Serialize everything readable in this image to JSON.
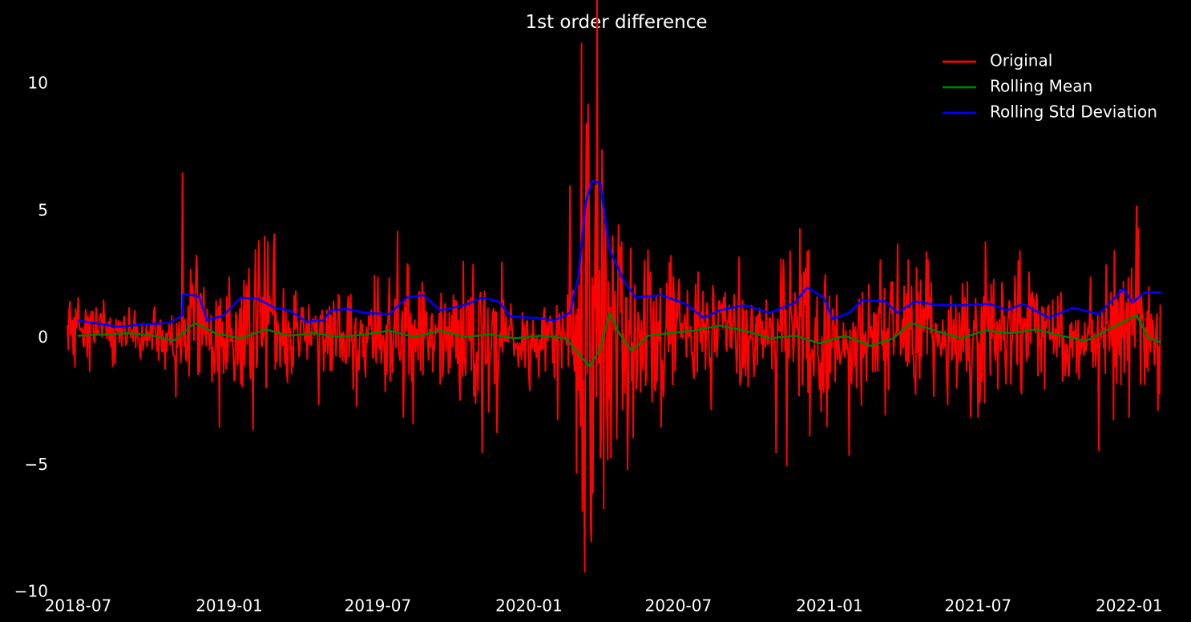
{
  "chart_data": {
    "type": "line",
    "title": "1st order difference",
    "xlabel": "",
    "ylabel": "",
    "grid": false,
    "legend_position": "top-right",
    "background": "#000000",
    "x_ticks": [
      "2018-07",
      "2019-01",
      "2019-07",
      "2020-01",
      "2020-07",
      "2021-01",
      "2021-07",
      "2022-01"
    ],
    "y_ticks": [
      -10,
      -5,
      0,
      5,
      10
    ],
    "y_tick_labels": [
      "−10",
      "−5",
      "0",
      "5",
      "10"
    ],
    "ylim": [
      -10,
      11.8
    ],
    "xlim": [
      "2018-06-10",
      "2022-02-20"
    ],
    "x_range": [
      "2018-06-18",
      "2022-02-08"
    ],
    "series": [
      {
        "name": "Original",
        "color": "#ff0000",
        "points": [
          [
            "2018-06-18",
            0.5
          ],
          [
            "2018-07-01",
            1.6
          ],
          [
            "2018-07-15",
            -1.3
          ],
          [
            "2018-08-01",
            1.5
          ],
          [
            "2018-08-15",
            -1.0
          ],
          [
            "2018-09-01",
            1.2
          ],
          [
            "2018-09-15",
            -0.8
          ],
          [
            "2018-10-01",
            1.0
          ],
          [
            "2018-10-15",
            -1.2
          ],
          [
            "2018-10-28",
            -2.3
          ],
          [
            "2018-11-05",
            6.5
          ],
          [
            "2018-11-10",
            -0.9
          ],
          [
            "2018-12-01",
            2.0
          ],
          [
            "2018-12-20",
            -3.5
          ],
          [
            "2019-01-01",
            2.4
          ],
          [
            "2019-01-15",
            -1.8
          ],
          [
            "2019-02-01",
            1.6
          ],
          [
            "2019-02-25",
            4.1
          ],
          [
            "2019-03-10",
            -1.0
          ],
          [
            "2019-04-01",
            1.2
          ],
          [
            "2019-04-20",
            -2.6
          ],
          [
            "2019-05-15",
            1.6
          ],
          [
            "2019-06-01",
            -2.0
          ],
          [
            "2019-07-01",
            2.4
          ],
          [
            "2019-07-25",
            4.2
          ],
          [
            "2019-08-01",
            -3.1
          ],
          [
            "2019-08-20",
            1.8
          ],
          [
            "2019-09-15",
            -1.8
          ],
          [
            "2019-10-01",
            1.7
          ],
          [
            "2019-10-25",
            2.9
          ],
          [
            "2019-11-05",
            -4.5
          ],
          [
            "2019-12-01",
            1.5
          ],
          [
            "2020-01-01",
            -1.5
          ],
          [
            "2020-01-20",
            1.2
          ],
          [
            "2020-02-05",
            -3.2
          ],
          [
            "2020-02-20",
            6.0
          ],
          [
            "2020-02-28",
            -5.3
          ],
          [
            "2020-03-05",
            11.6
          ],
          [
            "2020-03-09",
            -9.2
          ],
          [
            "2020-03-13",
            9.2
          ],
          [
            "2020-03-17",
            -8.0
          ],
          [
            "2020-03-22",
            6.0
          ],
          [
            "2020-03-28",
            -4.7
          ],
          [
            "2020-04-03",
            4.6
          ],
          [
            "2020-04-10",
            -4.7
          ],
          [
            "2020-04-20",
            3.0
          ],
          [
            "2020-05-01",
            -2.8
          ],
          [
            "2020-05-20",
            1.8
          ],
          [
            "2020-06-10",
            -3.5
          ],
          [
            "2020-07-01",
            1.8
          ],
          [
            "2020-07-25",
            2.6
          ],
          [
            "2020-08-10",
            -2.8
          ],
          [
            "2020-09-01",
            1.3
          ],
          [
            "2020-10-01",
            -1.5
          ],
          [
            "2020-10-28",
            -4.5
          ],
          [
            "2020-11-05",
            1.5
          ],
          [
            "2020-11-10",
            -5.0
          ],
          [
            "2020-12-01",
            2.6
          ],
          [
            "2020-12-20",
            -2.0
          ],
          [
            "2021-01-10",
            1.7
          ],
          [
            "2021-01-25",
            -4.6
          ],
          [
            "2021-02-10",
            1.8
          ],
          [
            "2021-03-10",
            -3.0
          ],
          [
            "2021-03-25",
            3.7
          ],
          [
            "2021-04-15",
            -1.6
          ],
          [
            "2021-05-05",
            2.2
          ],
          [
            "2021-05-25",
            -2.6
          ],
          [
            "2021-06-15",
            1.6
          ],
          [
            "2021-07-01",
            -3.1
          ],
          [
            "2021-07-20",
            2.3
          ],
          [
            "2021-08-10",
            -1.8
          ],
          [
            "2021-09-01",
            2.6
          ],
          [
            "2021-09-20",
            -2.0
          ],
          [
            "2021-10-10",
            1.8
          ],
          [
            "2021-11-01",
            -1.6
          ],
          [
            "2021-11-15",
            2.4
          ],
          [
            "2021-11-25",
            -4.4
          ],
          [
            "2021-12-10",
            1.8
          ],
          [
            "2022-01-01",
            -3.1
          ],
          [
            "2022-01-10",
            5.2
          ],
          [
            "2022-01-20",
            -1.8
          ],
          [
            "2022-02-08",
            1.3
          ]
        ]
      },
      {
        "name": "Rolling Mean",
        "color": "#008000",
        "points": [
          [
            "2018-07-01",
            0.1
          ],
          [
            "2018-08-01",
            0.15
          ],
          [
            "2018-09-01",
            0.2
          ],
          [
            "2018-10-01",
            0.1
          ],
          [
            "2018-10-25",
            -0.1
          ],
          [
            "2018-11-20",
            0.6
          ],
          [
            "2018-12-15",
            0.2
          ],
          [
            "2019-01-15",
            0.0
          ],
          [
            "2019-02-15",
            0.35
          ],
          [
            "2019-03-15",
            0.1
          ],
          [
            "2019-04-15",
            0.2
          ],
          [
            "2019-05-15",
            0.05
          ],
          [
            "2019-06-15",
            0.15
          ],
          [
            "2019-07-15",
            0.3
          ],
          [
            "2019-08-15",
            0.05
          ],
          [
            "2019-09-15",
            0.3
          ],
          [
            "2019-10-15",
            0.05
          ],
          [
            "2019-11-15",
            0.15
          ],
          [
            "2019-12-15",
            0.0
          ],
          [
            "2020-01-15",
            0.1
          ],
          [
            "2020-02-15",
            0.0
          ],
          [
            "2020-03-01",
            -0.6
          ],
          [
            "2020-03-15",
            -1.1
          ],
          [
            "2020-03-28",
            -0.4
          ],
          [
            "2020-04-08",
            1.0
          ],
          [
            "2020-04-20",
            0.2
          ],
          [
            "2020-05-05",
            -0.5
          ],
          [
            "2020-05-25",
            0.1
          ],
          [
            "2020-06-20",
            0.2
          ],
          [
            "2020-07-20",
            0.3
          ],
          [
            "2020-08-20",
            0.5
          ],
          [
            "2020-09-20",
            0.3
          ],
          [
            "2020-10-20",
            0.0
          ],
          [
            "2020-11-20",
            0.1
          ],
          [
            "2020-12-20",
            -0.2
          ],
          [
            "2021-01-20",
            0.1
          ],
          [
            "2021-02-20",
            -0.3
          ],
          [
            "2021-03-20",
            0.0
          ],
          [
            "2021-04-10",
            0.6
          ],
          [
            "2021-05-10",
            0.3
          ],
          [
            "2021-06-10",
            0.0
          ],
          [
            "2021-07-10",
            0.3
          ],
          [
            "2021-08-10",
            0.2
          ],
          [
            "2021-09-10",
            0.35
          ],
          [
            "2021-10-10",
            0.1
          ],
          [
            "2021-11-10",
            -0.1
          ],
          [
            "2021-12-10",
            0.4
          ],
          [
            "2022-01-10",
            0.9
          ],
          [
            "2022-01-25",
            0.0
          ],
          [
            "2022-02-08",
            -0.15
          ]
        ]
      },
      {
        "name": "Rolling Std Deviation",
        "color": "#0000ff",
        "points": [
          [
            "2018-07-01",
            0.7
          ],
          [
            "2018-07-20",
            0.6
          ],
          [
            "2018-08-20",
            0.45
          ],
          [
            "2018-09-20",
            0.55
          ],
          [
            "2018-10-20",
            0.6
          ],
          [
            "2018-11-05",
            0.9
          ],
          [
            "2018-11-06",
            1.75
          ],
          [
            "2018-11-25",
            1.65
          ],
          [
            "2018-12-05",
            0.7
          ],
          [
            "2018-12-25",
            0.9
          ],
          [
            "2019-01-15",
            1.6
          ],
          [
            "2019-02-05",
            1.55
          ],
          [
            "2019-02-25",
            1.2
          ],
          [
            "2019-03-15",
            1.1
          ],
          [
            "2019-04-05",
            0.65
          ],
          [
            "2019-04-25",
            0.7
          ],
          [
            "2019-05-05",
            1.1
          ],
          [
            "2019-05-25",
            1.15
          ],
          [
            "2019-06-15",
            1.0
          ],
          [
            "2019-07-15",
            0.95
          ],
          [
            "2019-08-05",
            1.6
          ],
          [
            "2019-08-25",
            1.7
          ],
          [
            "2019-09-15",
            1.1
          ],
          [
            "2019-10-15",
            1.3
          ],
          [
            "2019-11-05",
            1.6
          ],
          [
            "2019-11-25",
            1.45
          ],
          [
            "2019-12-10",
            0.85
          ],
          [
            "2020-01-10",
            0.8
          ],
          [
            "2020-02-01",
            0.7
          ],
          [
            "2020-02-20",
            1.0
          ],
          [
            "2020-03-01",
            2.4
          ],
          [
            "2020-03-10",
            5.3
          ],
          [
            "2020-03-18",
            6.2
          ],
          [
            "2020-03-28",
            6.1
          ],
          [
            "2020-04-08",
            3.5
          ],
          [
            "2020-04-25",
            2.3
          ],
          [
            "2020-05-10",
            1.6
          ],
          [
            "2020-06-10",
            1.7
          ],
          [
            "2020-07-10",
            1.35
          ],
          [
            "2020-08-01",
            0.8
          ],
          [
            "2020-08-20",
            1.1
          ],
          [
            "2020-09-20",
            1.3
          ],
          [
            "2020-10-20",
            1.0
          ],
          [
            "2020-11-20",
            1.4
          ],
          [
            "2020-12-05",
            2.0
          ],
          [
            "2020-12-25",
            1.6
          ],
          [
            "2021-01-05",
            0.75
          ],
          [
            "2021-01-25",
            1.0
          ],
          [
            "2021-02-10",
            1.5
          ],
          [
            "2021-03-10",
            1.45
          ],
          [
            "2021-03-25",
            1.0
          ],
          [
            "2021-04-15",
            1.45
          ],
          [
            "2021-05-15",
            1.3
          ],
          [
            "2021-06-15",
            1.3
          ],
          [
            "2021-07-15",
            1.35
          ],
          [
            "2021-08-05",
            1.1
          ],
          [
            "2021-08-25",
            1.35
          ],
          [
            "2021-09-25",
            0.8
          ],
          [
            "2021-10-25",
            1.2
          ],
          [
            "2021-11-25",
            0.95
          ],
          [
            "2021-12-15",
            1.6
          ],
          [
            "2021-12-25",
            1.95
          ],
          [
            "2022-01-05",
            1.4
          ],
          [
            "2022-01-20",
            1.8
          ],
          [
            "2022-02-08",
            1.8
          ]
        ]
      }
    ]
  }
}
